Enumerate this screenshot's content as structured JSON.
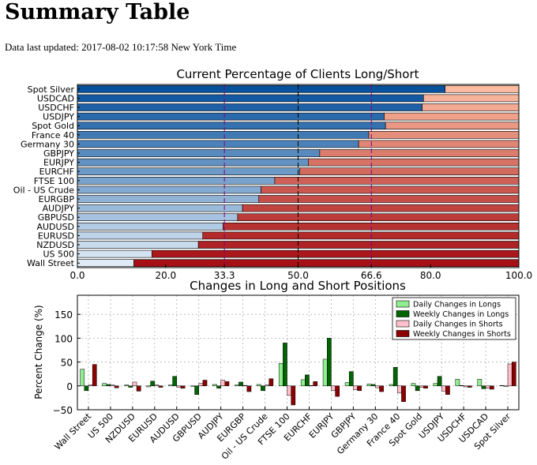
{
  "header": {
    "title": "Summary Table",
    "updated_label": "Data last updated:",
    "updated_value": "2017-08-02 10:17:58 New York Time"
  },
  "chart_data": [
    {
      "type": "bar",
      "orientation": "horizontal",
      "stacked": true,
      "title": "Current Percentage of Clients Long/Short",
      "categories": [
        "Wall Street",
        "US 500",
        "NZDUSD",
        "EURUSD",
        "AUDUSD",
        "GBPUSD",
        "AUDJPY",
        "EURGBP",
        "Oil - US Crude",
        "FTSE 100",
        "EURCHF",
        "EURJPY",
        "GBPJPY",
        "Germany 30",
        "France 40",
        "Spot Gold",
        "USDJPY",
        "USDCHF",
        "USDCAD",
        "Spot Silver"
      ],
      "series": [
        {
          "values": [
            12.8,
            16.9,
            27.4,
            28.4,
            33.0,
            36.3,
            37.4,
            41.1,
            41.6,
            44.7,
            50.4,
            52.3,
            54.9,
            63.7,
            66.0,
            69.8,
            69.5,
            78.1,
            78.4,
            83.3
          ]
        },
        {
          "values": [
            87.2,
            83.1,
            72.6,
            71.6,
            67.0,
            63.7,
            62.6,
            58.9,
            58.4,
            55.3,
            49.6,
            47.7,
            45.1,
            36.3,
            34.0,
            30.2,
            30.5,
            21.9,
            21.6,
            16.7
          ]
        }
      ],
      "xlim": [
        0,
        100
      ],
      "xticks": [
        "0.0",
        "20.0",
        "33.3",
        "50.0",
        "66.6",
        "80.0",
        "100.0"
      ],
      "xtick_values": [
        0,
        20,
        33.3,
        50,
        66.6,
        80,
        100
      ],
      "highlight_ticks": [
        "33.3",
        "66.6"
      ],
      "reference_lines": [
        33.3,
        50,
        66.6
      ],
      "colors": {
        "long_dark": "#08519c",
        "long_light": "#deebf7",
        "short_light": "#fcbba1",
        "short_dark": "#a50f15",
        "highlight": "#800080"
      }
    },
    {
      "type": "bar",
      "title": "Changes in Long and Short Positions",
      "ylabel": "Percent Change (%)",
      "categories": [
        "Wall Street",
        "US 500",
        "NZDUSD",
        "EURUSD",
        "AUDUSD",
        "GBPUSD",
        "AUDJPY",
        "EURGBP",
        "Oil - US Crude",
        "FTSE 100",
        "EURCHF",
        "EURJPY",
        "GBPJPY",
        "Germany 30",
        "France 40",
        "Spot Gold",
        "USDJPY",
        "USDCHF",
        "USDCAD",
        "Spot Silver"
      ],
      "series": [
        {
          "name": "Daily Changes in Longs",
          "color": "#90ee90",
          "values": [
            35,
            5,
            2,
            -2,
            2,
            -1,
            3,
            2,
            3,
            47,
            13,
            56,
            7,
            4,
            3,
            5,
            5,
            14,
            14,
            1
          ]
        },
        {
          "name": "Weekly Changes in Longs",
          "color": "#006400",
          "values": [
            -10,
            3,
            -3,
            10,
            20,
            -18,
            -5,
            8,
            -10,
            90,
            23,
            100,
            30,
            3,
            39,
            -10,
            20,
            1,
            -6,
            0
          ]
        },
        {
          "name": "Daily Changes in Shorts",
          "color": "#ffc0cb",
          "values": [
            2,
            2,
            8,
            2,
            -3,
            5,
            12,
            1,
            2,
            -20,
            1,
            -10,
            -8,
            -4,
            -15,
            -3,
            -11,
            -2,
            -5,
            46
          ]
        },
        {
          "name": "Weekly Changes in Shorts",
          "color": "#8b0000",
          "values": [
            45,
            -4,
            -11,
            -3,
            -5,
            12,
            9,
            -12,
            15,
            -40,
            9,
            -22,
            -10,
            -12,
            -33,
            -5,
            -18,
            -3,
            -7,
            50
          ]
        }
      ],
      "ylim": [
        -50,
        190
      ],
      "yticks": [
        "−50",
        "0",
        "50",
        "100",
        "150"
      ],
      "ytick_values": [
        -50,
        0,
        50,
        100,
        150
      ],
      "legend_position": "top-right",
      "grid": true
    }
  ]
}
